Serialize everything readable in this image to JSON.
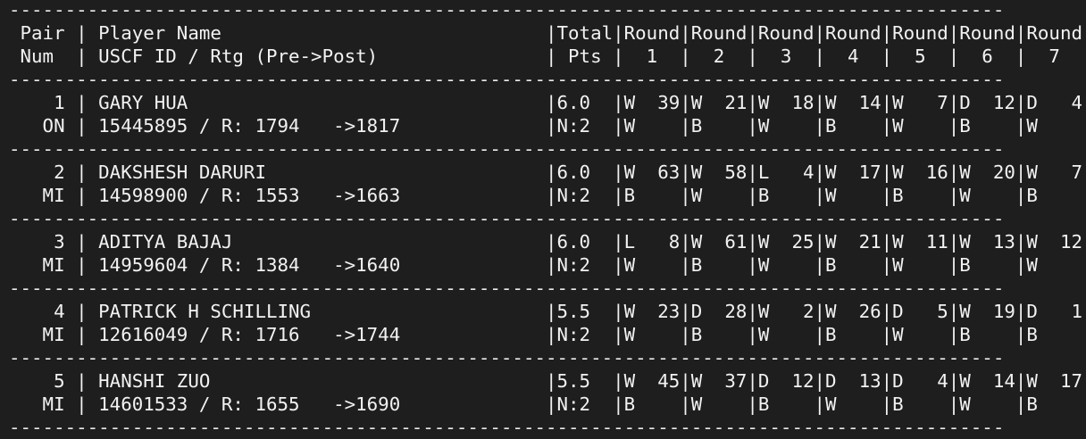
{
  "lines": [
    "-----------------------------------------------------------------------------------------",
    " Pair | Player Name                             |Total|Round|Round|Round|Round|Round|Round|Round| ",
    " Num  | USCF ID / Rtg (Pre->Post)               | Pts |  1  |  2  |  3  |  4  |  5  |  6  |  7  | ",
    "-----------------------------------------------------------------------------------------",
    "    1 | GARY HUA                                |6.0  |W  39|W  21|W  18|W  14|W   7|D  12|D   4|",
    "   ON | 15445895 / R: 1794   ->1817             |N:2  |W    |B    |W    |B    |W    |B    |W    |",
    "-----------------------------------------------------------------------------------------",
    "    2 | DAKSHESH DARURI                         |6.0  |W  63|W  58|L   4|W  17|W  16|W  20|W   7|",
    "   MI | 14598900 / R: 1553   ->1663             |N:2  |B    |W    |B    |W    |B    |W    |B    |",
    "-----------------------------------------------------------------------------------------",
    "    3 | ADITYA BAJAJ                            |6.0  |L   8|W  61|W  25|W  21|W  11|W  13|W  12|",
    "   MI | 14959604 / R: 1384   ->1640             |N:2  |W    |B    |W    |B    |W    |B    |W    |",
    "-----------------------------------------------------------------------------------------",
    "    4 | PATRICK H SCHILLING                     |5.5  |W  23|D  28|W   2|W  26|D   5|W  19|D   1|",
    "   MI | 12616049 / R: 1716   ->1744             |N:2  |W    |B    |W    |B    |W    |B    |B    |",
    "-----------------------------------------------------------------------------------------",
    "    5 | HANSHI ZUO                              |5.5  |W  45|W  37|D  12|D  13|D   4|W  14|W  17|",
    "   MI | 14601533 / R: 1655   ->1690             |N:2  |B    |W    |B    |W    |B    |W    |B    |",
    "-----------------------------------------------------------------------------------------"
  ]
}
